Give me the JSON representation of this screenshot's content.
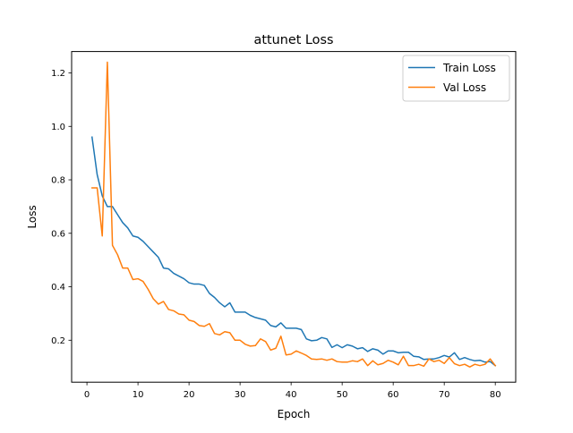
{
  "chart_data": {
    "type": "line",
    "title": "attunet Loss",
    "xlabel": "Epoch",
    "ylabel": "Loss",
    "xlim": [
      -3,
      84
    ],
    "ylim": [
      0.043,
      1.28
    ],
    "xticks": [
      0,
      10,
      20,
      30,
      40,
      50,
      60,
      70,
      80
    ],
    "yticks": [
      0.2,
      0.4,
      0.6,
      0.8,
      1.0,
      1.2
    ],
    "ytick_labels": [
      "0.2",
      "0.4",
      "0.6",
      "0.8",
      "1.0",
      "1.2"
    ],
    "grid": false,
    "legend_position": "top-right",
    "x": [
      1,
      2,
      3,
      4,
      5,
      6,
      7,
      8,
      9,
      10,
      11,
      12,
      13,
      14,
      15,
      16,
      17,
      18,
      19,
      20,
      21,
      22,
      23,
      24,
      25,
      26,
      27,
      28,
      29,
      30,
      31,
      32,
      33,
      34,
      35,
      36,
      37,
      38,
      39,
      40,
      41,
      42,
      43,
      44,
      45,
      46,
      47,
      48,
      49,
      50,
      51,
      52,
      53,
      54,
      55,
      56,
      57,
      58,
      59,
      60,
      61,
      62,
      63,
      64,
      65,
      66,
      67,
      68,
      69,
      70,
      71,
      72,
      73,
      74,
      75,
      76,
      77,
      78,
      79,
      80
    ],
    "series": [
      {
        "name": "Train Loss",
        "color": "#1f77b4",
        "values": [
          0.96,
          0.82,
          0.74,
          0.7,
          0.7,
          0.67,
          0.64,
          0.62,
          0.59,
          0.585,
          0.57,
          0.55,
          0.53,
          0.51,
          0.47,
          0.467,
          0.45,
          0.44,
          0.43,
          0.415,
          0.41,
          0.41,
          0.405,
          0.375,
          0.36,
          0.34,
          0.325,
          0.34,
          0.305,
          0.305,
          0.305,
          0.293,
          0.285,
          0.28,
          0.275,
          0.255,
          0.25,
          0.265,
          0.245,
          0.245,
          0.245,
          0.24,
          0.205,
          0.198,
          0.2,
          0.21,
          0.205,
          0.173,
          0.183,
          0.172,
          0.183,
          0.178,
          0.168,
          0.172,
          0.158,
          0.168,
          0.163,
          0.148,
          0.16,
          0.16,
          0.153,
          0.155,
          0.155,
          0.14,
          0.138,
          0.128,
          0.13,
          0.13,
          0.135,
          0.143,
          0.137,
          0.153,
          0.128,
          0.135,
          0.128,
          0.123,
          0.125,
          0.118,
          0.12,
          0.105
        ]
      },
      {
        "name": "Val Loss",
        "color": "#ff7f0e",
        "values": [
          0.77,
          0.77,
          0.59,
          1.24,
          0.555,
          0.52,
          0.47,
          0.47,
          0.427,
          0.43,
          0.42,
          0.39,
          0.355,
          0.335,
          0.345,
          0.315,
          0.31,
          0.298,
          0.295,
          0.275,
          0.27,
          0.255,
          0.252,
          0.262,
          0.225,
          0.22,
          0.232,
          0.228,
          0.2,
          0.2,
          0.185,
          0.178,
          0.18,
          0.205,
          0.195,
          0.163,
          0.17,
          0.215,
          0.145,
          0.148,
          0.16,
          0.152,
          0.143,
          0.13,
          0.128,
          0.13,
          0.125,
          0.13,
          0.12,
          0.118,
          0.118,
          0.123,
          0.12,
          0.13,
          0.105,
          0.123,
          0.108,
          0.113,
          0.125,
          0.118,
          0.108,
          0.14,
          0.105,
          0.105,
          0.11,
          0.103,
          0.13,
          0.12,
          0.125,
          0.113,
          0.135,
          0.112,
          0.105,
          0.11,
          0.1,
          0.11,
          0.105,
          0.11,
          0.13,
          0.105
        ]
      }
    ]
  }
}
